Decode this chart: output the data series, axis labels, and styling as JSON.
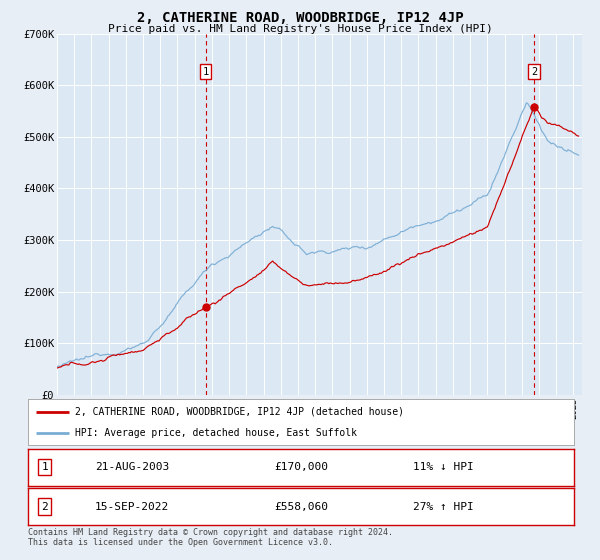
{
  "title": "2, CATHERINE ROAD, WOODBRIDGE, IP12 4JP",
  "subtitle": "Price paid vs. HM Land Registry's House Price Index (HPI)",
  "bg_color": "#e8eef5",
  "plot_bg_color": "#dce8f4",
  "grid_color": "#ffffff",
  "red_line_color": "#cc0000",
  "blue_line_color": "#7aadd4",
  "sale1_date_num": 2003.64,
  "sale1_price": 170000,
  "sale1_label": "1",
  "sale2_date_num": 2022.71,
  "sale2_price": 558060,
  "sale2_label": "2",
  "xmin": 1995,
  "xmax": 2025.5,
  "ymin": 0,
  "ymax": 700000,
  "yticks": [
    0,
    100000,
    200000,
    300000,
    400000,
    500000,
    600000,
    700000
  ],
  "ytick_labels": [
    "£0",
    "£100K",
    "£200K",
    "£300K",
    "£400K",
    "£500K",
    "£600K",
    "£700K"
  ],
  "legend_line1": "2, CATHERINE ROAD, WOODBRIDGE, IP12 4JP (detached house)",
  "legend_line2": "HPI: Average price, detached house, East Suffolk",
  "table_row1": [
    "1",
    "21-AUG-2003",
    "£170,000",
    "11% ↓ HPI"
  ],
  "table_row2": [
    "2",
    "15-SEP-2022",
    "£558,060",
    "27% ↑ HPI"
  ],
  "footer": "Contains HM Land Registry data © Crown copyright and database right 2024.\nThis data is licensed under the Open Government Licence v3.0."
}
